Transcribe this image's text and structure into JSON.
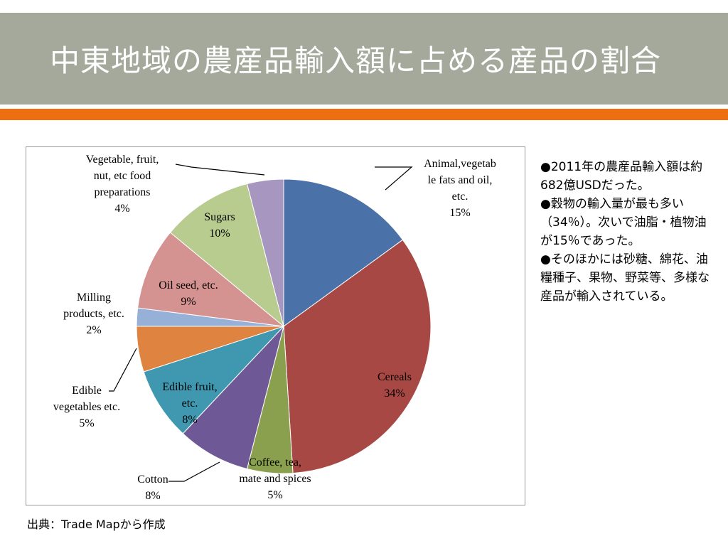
{
  "slide": {
    "title": "中東地域の農産品輸入額に占める産品の割合",
    "source": "出典：Trade Mapから作成",
    "colors": {
      "title_bar": "#a5a99b",
      "accent_stripe": "#ee6f12"
    }
  },
  "notes": [
    {
      "text": "●2011年の農産品輸入額は約682億USDだった。"
    },
    {
      "text": "●穀物の輸入量が最も多い（34％）。次いで油脂・植物油が15％であった。"
    },
    {
      "text": "●そのほかには砂糖、綿花、油糧種子、果物、野菜等、多様な産品が輸入されている。"
    }
  ],
  "chart_data": {
    "type": "pie",
    "start_angle": "12 o'clock, clockwise",
    "slices": [
      {
        "label_lines": [
          "Animal,vegetab",
          "le fats and oil,",
          "etc."
        ],
        "value_label": "15%",
        "value": 15,
        "color": "#4a72a8"
      },
      {
        "label_lines": [
          "Cereals"
        ],
        "value_label": "34%",
        "value": 34,
        "color": "#a84844"
      },
      {
        "label_lines": [
          "Coffee, tea,",
          "mate and spices"
        ],
        "value_label": "5%",
        "value": 5,
        "color": "#8aa04e"
      },
      {
        "label_lines": [
          "Cotton"
        ],
        "value_label": "8%",
        "value": 8,
        "color": "#6e5895"
      },
      {
        "label_lines": [
          "Edible fruit,",
          "etc."
        ],
        "value_label": "8%",
        "value": 8,
        "color": "#3f98b0"
      },
      {
        "label_lines": [
          "Edible",
          "vegetables etc."
        ],
        "value_label": "5%",
        "value": 5,
        "color": "#de8340"
      },
      {
        "label_lines": [
          "Milling",
          "products, etc."
        ],
        "value_label": "2%",
        "value": 2,
        "color": "#96b0d8"
      },
      {
        "label_lines": [
          "Oil seed, etc."
        ],
        "value_label": "9%",
        "value": 9,
        "color": "#d49290"
      },
      {
        "label_lines": [
          "Sugars"
        ],
        "value_label": "10%",
        "value": 10,
        "color": "#b8cc90"
      },
      {
        "label_lines": [
          "Vegetable, fruit,",
          "nut, etc food",
          "preparations"
        ],
        "value_label": "4%",
        "value": 4,
        "color": "#a796c0"
      }
    ]
  }
}
